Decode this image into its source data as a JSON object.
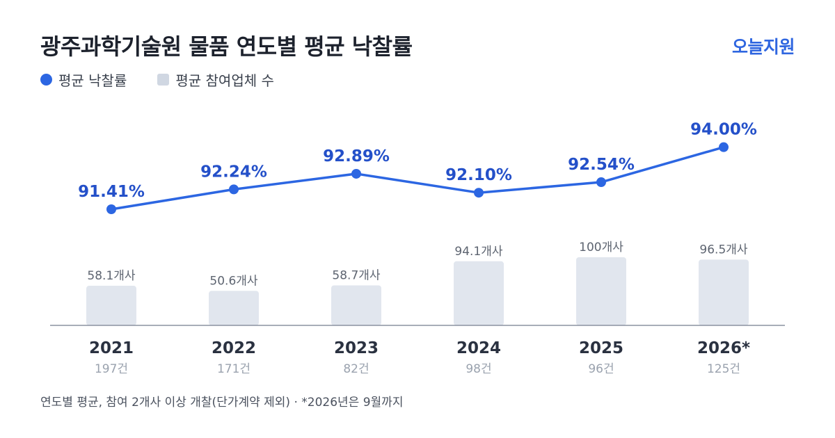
{
  "header": {
    "title": "광주과학기술원 물품 연도별 평균 낙찰률",
    "brand": "오늘지원"
  },
  "legend": {
    "rate_label": "평균 낙찰률",
    "bidders_label": "평균 참여업체 수"
  },
  "colors": {
    "line": "#2c66e2",
    "rate_text": "#2450c9",
    "bar": "#e1e6ee",
    "axis": "#8a92a0",
    "year_text": "#2a3140",
    "count_text": "#9aa2ae",
    "bar_label": "#5d6470"
  },
  "chart_data": {
    "type": "bar+line",
    "categories": [
      "2021",
      "2022",
      "2023",
      "2024",
      "2025",
      "2026*"
    ],
    "series": [
      {
        "name": "평균 낙찰률",
        "type": "line",
        "values": [
          91.41,
          92.24,
          92.89,
          92.1,
          92.54,
          94.0
        ],
        "labels": [
          "91.41%",
          "92.24%",
          "92.89%",
          "92.10%",
          "92.54%",
          "94.00%"
        ]
      },
      {
        "name": "평균 참여업체 수",
        "type": "bar",
        "values": [
          58.1,
          50.6,
          58.7,
          94.1,
          100,
          96.5
        ],
        "labels": [
          "58.1개사",
          "50.6개사",
          "58.7개사",
          "94.1개사",
          "100개사",
          "96.5개사"
        ]
      }
    ],
    "counts": [
      "197건",
      "171건",
      "82건",
      "98건",
      "96건",
      "125건"
    ]
  },
  "footnote": "연도별 평균, 참여 2개사 이상 개찰(단가계약 제외) · *2026년은 9월까지"
}
